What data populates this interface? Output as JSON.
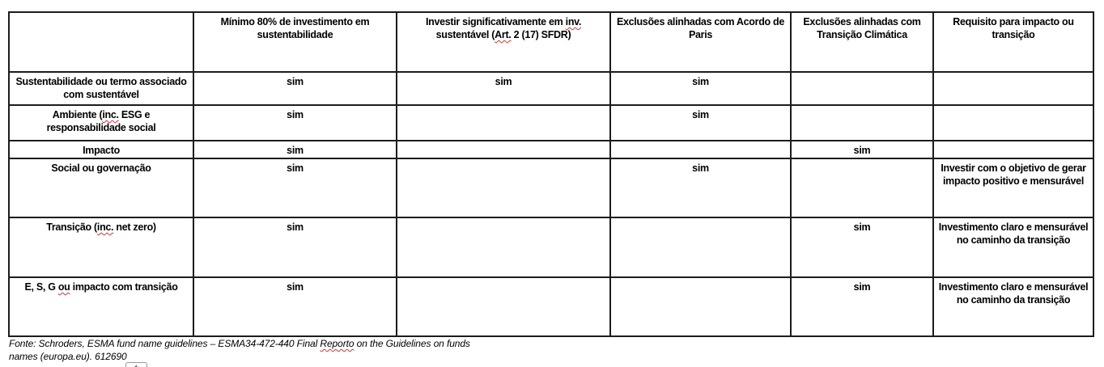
{
  "colors": {
    "table_border": "#1c1c1c",
    "text": "#000000",
    "spellcheck_squiggle": "#d13434"
  },
  "table": {
    "header": {
      "col1": "",
      "col2": "Mínimo 80% de investimento em sustentabilidade",
      "col3_segments": [
        {
          "text": "Investir significativamente em "
        },
        {
          "text": "inv.",
          "squiggle": true
        },
        {
          "text": " sustentável ("
        },
        {
          "text": "Art.",
          "squiggle": true
        },
        {
          "text": " 2 (17) SFDR)"
        }
      ],
      "col4": "Exclusões alinhadas com Acordo de Paris",
      "col5": "Exclusões alinhadas com Transição Climática",
      "col6": "Requisito para impacto ou transição"
    },
    "rows": [
      {
        "label_segments": [
          {
            "text": "Sustentabilidade ou termo associado com sustentável"
          }
        ],
        "cells": [
          "sim",
          "sim",
          "sim",
          "",
          ""
        ]
      },
      {
        "label_segments": [
          {
            "text": "Ambiente ("
          },
          {
            "text": "inc.",
            "squiggle": true
          },
          {
            "text": " ESG e responsabilidade social"
          }
        ],
        "cells": [
          "sim",
          "",
          "sim",
          "",
          ""
        ]
      },
      {
        "label_segments": [
          {
            "text": "Impacto"
          }
        ],
        "cells": [
          "sim",
          "",
          "",
          "sim",
          ""
        ]
      },
      {
        "label_segments": [
          {
            "text": "Social ou governação"
          }
        ],
        "cells": [
          "sim",
          "",
          "sim",
          "",
          "Investir com o objetivo de gerar impacto positivo e mensurável"
        ]
      },
      {
        "label_segments": [
          {
            "text": "Transição ("
          },
          {
            "text": "inc.",
            "squiggle": true
          },
          {
            "text": " net zero)"
          }
        ],
        "cells": [
          "sim",
          "",
          "",
          "sim",
          "Investimento claro e mensurável no caminho da transição"
        ]
      },
      {
        "label_segments": [
          {
            "text": "E, S, G "
          },
          {
            "text": "ou",
            "squiggle": true
          },
          {
            "text": " impacto com transição"
          }
        ],
        "cells": [
          "sim",
          "",
          "",
          "sim",
          "Investimento claro e mensurável no caminho da transição"
        ]
      }
    ]
  },
  "footnote": {
    "line1_segments": [
      {
        "text": "Fonte: Schroders, ESMA fund name guidelines – ESMA34-472-440 Final "
      },
      {
        "text": "Reporto",
        "squiggle": true
      },
      {
        "text": " on the Guidelines on funds"
      }
    ],
    "line2": "names (europa.eu). 612690"
  }
}
